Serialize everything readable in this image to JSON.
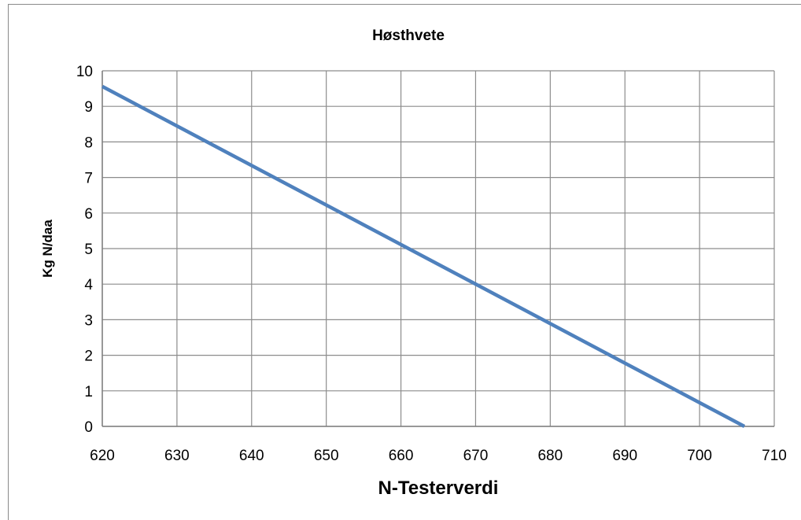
{
  "chart_data": {
    "type": "line",
    "title": "Høsthvete",
    "xlabel": "N-Testerverdi",
    "ylabel": "Kg N/daa",
    "xlim": [
      620,
      710
    ],
    "ylim": [
      0,
      10
    ],
    "x_ticks": [
      620,
      630,
      640,
      650,
      660,
      670,
      680,
      690,
      700,
      710
    ],
    "y_ticks": [
      0,
      1,
      2,
      3,
      4,
      5,
      6,
      7,
      8,
      9,
      10
    ],
    "grid": true,
    "series": [
      {
        "color": "#4f81bd",
        "x": [
          620,
          706
        ],
        "y": [
          9.56,
          0
        ]
      }
    ]
  }
}
